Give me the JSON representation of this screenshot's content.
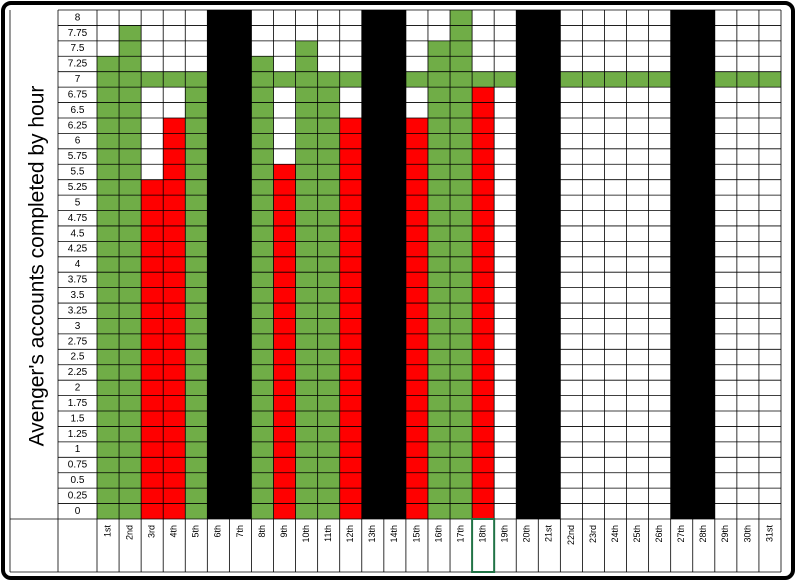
{
  "chart_data": {
    "type": "bar",
    "y_label": "Avenger's accounts completed by hour",
    "categories": [
      "1st",
      "2nd",
      "3rd",
      "4th",
      "5th",
      "6th",
      "7th",
      "8th",
      "9th",
      "10th",
      "11th",
      "12th",
      "13th",
      "14th",
      "15th",
      "16th",
      "17th",
      "18th",
      "19th",
      "20th",
      "21st",
      "22nd",
      "23rd",
      "24th",
      "25th",
      "26th",
      "27th",
      "28th",
      "29th",
      "30th",
      "31st"
    ],
    "values": [
      7.25,
      7.75,
      5.25,
      6.25,
      7,
      null,
      null,
      7.25,
      5.5,
      7.5,
      7,
      6.25,
      null,
      null,
      6.25,
      7.5,
      8,
      6.75,
      null,
      null,
      null,
      null,
      null,
      null,
      null,
      null,
      null,
      null,
      null,
      null,
      null
    ],
    "colors": [
      "#70ad47",
      "#70ad47",
      "#ff0000",
      "#ff0000",
      "#70ad47",
      null,
      null,
      "#70ad47",
      "#ff0000",
      "#70ad47",
      "#70ad47",
      "#ff0000",
      null,
      null,
      "#ff0000",
      "#70ad47",
      "#70ad47",
      "#ff0000",
      null,
      null,
      null,
      null,
      null,
      null,
      null,
      null,
      null,
      null,
      null,
      null,
      null
    ],
    "blocked": [
      false,
      false,
      false,
      false,
      false,
      true,
      true,
      false,
      false,
      false,
      false,
      false,
      true,
      true,
      false,
      false,
      false,
      false,
      false,
      true,
      true,
      false,
      false,
      false,
      false,
      false,
      true,
      true,
      false,
      false,
      false
    ],
    "blocked_color": "#000000",
    "target": 7,
    "target_color": "#70ad47",
    "ylim": [
      -0.25,
      8
    ],
    "yticks": [
      0,
      0.25,
      0.5,
      0.75,
      1,
      1.25,
      1.5,
      1.75,
      2,
      2.25,
      2.5,
      2.75,
      3,
      3.25,
      3.5,
      3.75,
      4,
      4.25,
      4.5,
      4.75,
      5,
      5.25,
      5.5,
      5.75,
      6,
      6.25,
      6.5,
      6.75,
      7,
      7.25,
      7.5,
      7.75,
      8
    ],
    "grid": true
  }
}
